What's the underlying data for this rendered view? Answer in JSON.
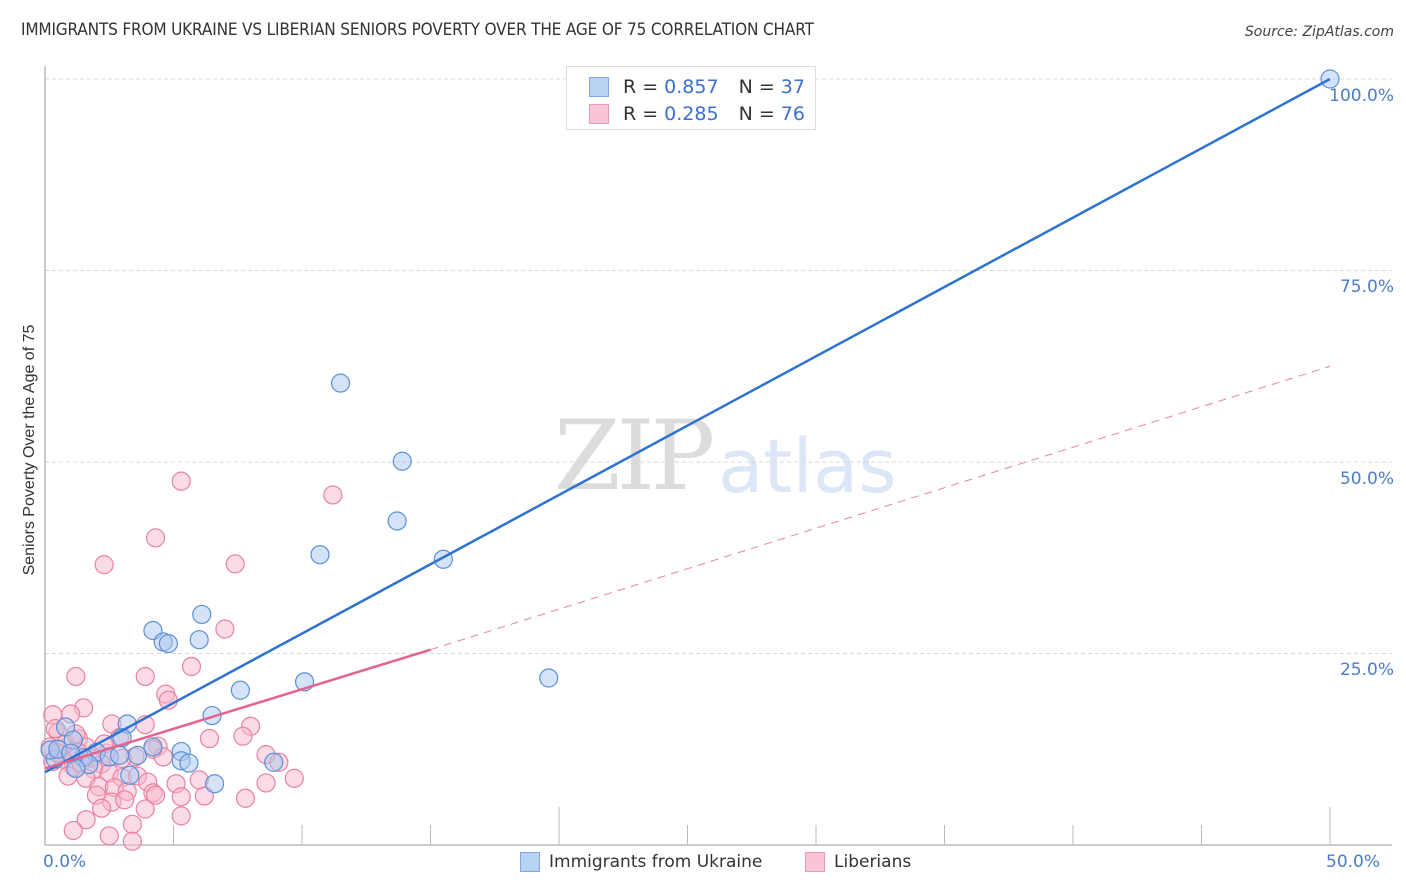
{
  "header": {
    "title": "IMMIGRANTS FROM UKRAINE VS LIBERIAN SENIORS POVERTY OVER THE AGE OF 75 CORRELATION CHART",
    "source": "Source: ZipAtlas.com"
  },
  "watermark": {
    "zip": "ZIP",
    "atlas": "atlas"
  },
  "legend": {
    "rows": [
      {
        "r_label": "R =",
        "r_value": "0.857",
        "n_label": "N =",
        "n_value": "37",
        "color": "#b8d2f4",
        "border": "#7fa8e0"
      },
      {
        "r_label": "R =",
        "r_value": "0.285",
        "n_label": "N =",
        "n_value": "76",
        "color": "#f9c4d4",
        "border": "#ee9ab4"
      }
    ],
    "bottom": [
      {
        "label": "Immigrants from Ukraine",
        "color": "#b8d2f4",
        "border": "#7fa8e0"
      },
      {
        "label": "Liberians",
        "color": "#f9c4d4",
        "border": "#ee9ab4"
      }
    ]
  },
  "axes": {
    "ylabel": "Seniors Poverty Over the Age of 75",
    "x_ticks": [
      "0.0%",
      "50.0%"
    ],
    "y_ticks": [
      "100.0%",
      "75.0%",
      "50.0%",
      "25.0%"
    ]
  },
  "colors": {
    "ukraine_fill": "#a9c8f0",
    "ukraine_stroke": "#5b8fdb",
    "ukraine_line": "#2e72d2",
    "liberian_fill": "#f7b8cb",
    "liberian_stroke": "#e8829f",
    "liberian_line": "#e4648f",
    "grid": "#d9d9d9",
    "axis": "#bbbbbb"
  },
  "chart_data": {
    "type": "scatter",
    "title": "IMMIGRANTS FROM UKRAINE VS LIBERIAN SENIORS POVERTY OVER THE AGE OF 75 CORRELATION CHART",
    "xlabel": "",
    "ylabel": "Seniors Poverty Over the Age of 75",
    "xlim": [
      0,
      50
    ],
    "ylim": [
      0,
      100
    ],
    "x_tick_labels": [
      "0.0%",
      "50.0%"
    ],
    "y_tick_labels": [
      "25.0%",
      "50.0%",
      "75.0%",
      "100.0%"
    ],
    "grid": true,
    "legend_position": "top-center",
    "series": [
      {
        "name": "Immigrants from Ukraine",
        "R": 0.857,
        "N": 37,
        "trend": {
          "x0": 0,
          "y0": 9.5,
          "x1": 50,
          "y1": 100,
          "style": "solid"
        },
        "points": [
          [
            50.0,
            100.0
          ],
          [
            11.5,
            60.3
          ],
          [
            13.9,
            50.1
          ],
          [
            13.7,
            42.3
          ],
          [
            10.7,
            37.9
          ],
          [
            15.5,
            37.3
          ],
          [
            19.6,
            21.8
          ],
          [
            6.1,
            30.1
          ],
          [
            4.2,
            28.0
          ],
          [
            4.6,
            26.5
          ],
          [
            4.8,
            26.3
          ],
          [
            6.0,
            26.8
          ],
          [
            10.1,
            21.3
          ],
          [
            7.6,
            20.2
          ],
          [
            6.5,
            16.9
          ],
          [
            3.2,
            15.8
          ],
          [
            0.8,
            15.4
          ],
          [
            3.0,
            14.0
          ],
          [
            4.2,
            12.8
          ],
          [
            5.3,
            12.2
          ],
          [
            3.6,
            11.7
          ],
          [
            2.0,
            12.1
          ],
          [
            2.5,
            11.5
          ],
          [
            1.5,
            11.4
          ],
          [
            0.4,
            11.2
          ],
          [
            0.2,
            12.4
          ],
          [
            1.1,
            13.7
          ],
          [
            5.3,
            11.0
          ],
          [
            5.6,
            10.7
          ],
          [
            8.9,
            10.8
          ],
          [
            1.7,
            10.5
          ],
          [
            3.3,
            9.1
          ],
          [
            6.6,
            8.0
          ],
          [
            2.9,
            11.7
          ],
          [
            0.5,
            12.5
          ],
          [
            1.2,
            10.0
          ],
          [
            1.0,
            12.0
          ]
        ]
      },
      {
        "name": "Liberians",
        "R": 0.285,
        "N": 76,
        "trend": {
          "x0": 0,
          "y0": 10.0,
          "x1": 15,
          "y1": 25.5,
          "style": "solid",
          "extended_to": {
            "x": 50,
            "y": 62.5,
            "style": "dashed"
          }
        },
        "points": [
          [
            5.3,
            47.5
          ],
          [
            11.2,
            45.7
          ],
          [
            4.3,
            40.1
          ],
          [
            7.4,
            36.7
          ],
          [
            2.3,
            36.6
          ],
          [
            7.0,
            28.2
          ],
          [
            5.7,
            23.3
          ],
          [
            1.2,
            22.0
          ],
          [
            3.9,
            22.0
          ],
          [
            4.7,
            19.7
          ],
          [
            4.8,
            18.9
          ],
          [
            1.5,
            17.9
          ],
          [
            0.3,
            17.0
          ],
          [
            1.0,
            17.1
          ],
          [
            2.6,
            15.8
          ],
          [
            3.9,
            15.7
          ],
          [
            8.0,
            15.5
          ],
          [
            0.5,
            14.7
          ],
          [
            1.3,
            13.9
          ],
          [
            7.7,
            14.2
          ],
          [
            6.4,
            13.9
          ],
          [
            2.9,
            14.0
          ],
          [
            4.4,
            12.9
          ],
          [
            0.2,
            12.8
          ],
          [
            0.6,
            12.4
          ],
          [
            1.6,
            12.8
          ],
          [
            2.4,
            12.0
          ],
          [
            3.5,
            11.5
          ],
          [
            4.2,
            12.5
          ],
          [
            0.9,
            11.9
          ],
          [
            1.8,
            11.3
          ],
          [
            2.2,
            10.6
          ],
          [
            1.1,
            10.2
          ],
          [
            3.0,
            11.3
          ],
          [
            0.3,
            10.9
          ],
          [
            0.7,
            11.2
          ],
          [
            1.4,
            10.7
          ],
          [
            1.9,
            9.9
          ],
          [
            2.5,
            9.4
          ],
          [
            3.0,
            8.8
          ],
          [
            3.6,
            9.0
          ],
          [
            4.0,
            8.2
          ],
          [
            5.1,
            8.0
          ],
          [
            0.9,
            9.0
          ],
          [
            1.6,
            8.7
          ],
          [
            2.1,
            7.6
          ],
          [
            2.7,
            7.5
          ],
          [
            3.2,
            7.0
          ],
          [
            4.2,
            6.8
          ],
          [
            5.3,
            6.3
          ],
          [
            6.2,
            6.4
          ],
          [
            7.8,
            6.1
          ],
          [
            8.6,
            8.1
          ],
          [
            9.7,
            8.7
          ],
          [
            2.0,
            6.5
          ],
          [
            2.6,
            5.6
          ],
          [
            3.1,
            5.9
          ],
          [
            3.9,
            4.7
          ],
          [
            2.2,
            4.8
          ],
          [
            1.6,
            3.3
          ],
          [
            3.4,
            2.7
          ],
          [
            5.3,
            3.8
          ],
          [
            4.3,
            6.5
          ],
          [
            1.1,
            1.9
          ],
          [
            2.5,
            1.2
          ],
          [
            3.4,
            0.5
          ],
          [
            0.4,
            15.2
          ],
          [
            0.8,
            13.2
          ],
          [
            2.3,
            13.2
          ],
          [
            1.2,
            14.5
          ],
          [
            0.5,
            12.0
          ],
          [
            1.3,
            12.1
          ],
          [
            6.0,
            8.5
          ],
          [
            4.6,
            11.5
          ],
          [
            8.6,
            11.8
          ],
          [
            9.1,
            10.8
          ]
        ]
      }
    ]
  }
}
